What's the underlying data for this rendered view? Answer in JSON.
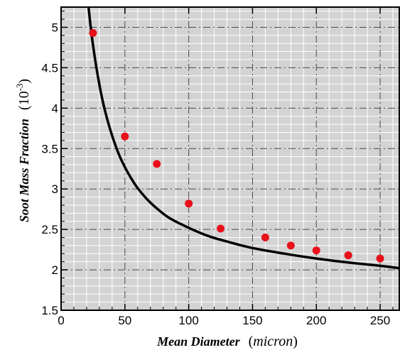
{
  "chart_data": {
    "type": "scatter",
    "xlabel": "Mean Diameter",
    "xlabel_unit": "micron",
    "ylabel": "Soot Mass Fraction",
    "ylabel_unit_base": "10",
    "ylabel_unit_exp": "-3",
    "xlim": [
      0,
      265
    ],
    "ylim": [
      1.5,
      5.25
    ],
    "x_ticks": [
      0,
      50,
      100,
      150,
      200,
      250
    ],
    "x_tick_labels": [
      "0",
      "50",
      "100",
      "150",
      "200",
      "250"
    ],
    "y_ticks": [
      1.5,
      2,
      2.5,
      3,
      3.5,
      4,
      4.5,
      5
    ],
    "y_tick_labels": [
      "1.5",
      "2",
      "2.5",
      "3",
      "3.5",
      "4",
      "4.5",
      "5"
    ],
    "grid": true,
    "plot_background": "#d3d3d3",
    "series": [
      {
        "kind": "points",
        "color": "#e8101a",
        "x": [
          25,
          50,
          75,
          100,
          125,
          160,
          180,
          200,
          225,
          250
        ],
        "y": [
          4.93,
          3.65,
          3.31,
          2.82,
          2.51,
          2.4,
          2.3,
          2.24,
          2.18,
          2.14
        ]
      },
      {
        "kind": "curve",
        "color": "#000000",
        "x": [
          21.5,
          23,
          25,
          28,
          32,
          36,
          40,
          45,
          50,
          55,
          60,
          67,
          75,
          85,
          100,
          115,
          130,
          150,
          175,
          200,
          225,
          250,
          265
        ],
        "y": [
          5.25,
          5.03,
          4.78,
          4.47,
          4.13,
          3.87,
          3.66,
          3.44,
          3.27,
          3.13,
          3.01,
          2.88,
          2.76,
          2.64,
          2.52,
          2.42,
          2.35,
          2.27,
          2.2,
          2.14,
          2.09,
          2.05,
          2.02
        ]
      }
    ]
  }
}
